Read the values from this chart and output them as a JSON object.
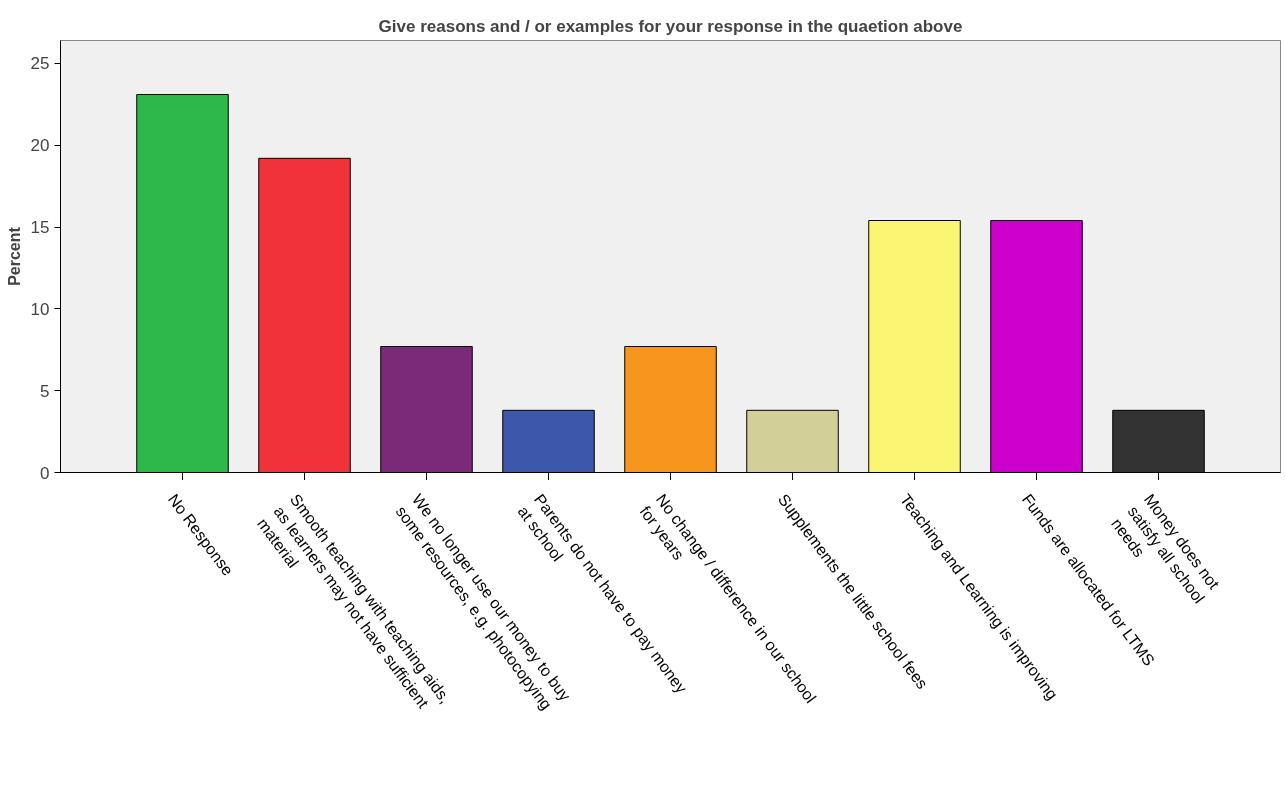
{
  "chart_data": {
    "type": "bar",
    "title": "Give reasons and / or examples for your response in the quaetion above",
    "ylabel": "Percent",
    "categories": [
      "No Response",
      "Smooth teaching with teaching aids,\nas learners may not have sufficient\nmaterial",
      "We no longer use our money to buy\nsome resources, e.g. photocopying",
      "Parents do not have to pay money\nat school",
      "No change / difference in our school\nfor years",
      "Supplements the little school fees",
      "Teaching and Learning is improving",
      "Funds are allocated for LTMS",
      "Money does not\nsatisfy all school\nneeds"
    ],
    "values": [
      23.1,
      19.2,
      7.7,
      3.8,
      7.7,
      3.8,
      15.4,
      15.4,
      3.8
    ],
    "colors": [
      "#2eb84a",
      "#f0333a",
      "#7b2a7a",
      "#3d57aa",
      "#f7961f",
      "#d3cf98",
      "#faf673",
      "#cc00cc",
      "#333333"
    ],
    "ylim": [
      0,
      26.4
    ],
    "yticks": [
      0,
      5,
      10,
      15,
      20,
      25
    ],
    "grid": false
  }
}
